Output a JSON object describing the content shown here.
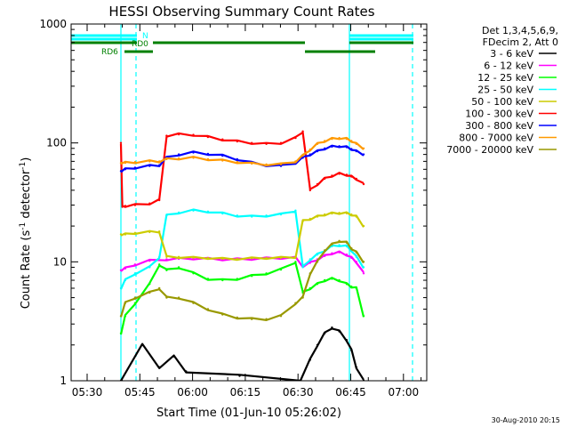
{
  "chart_data": {
    "type": "line",
    "title": "HESSI Observing Summary Count Rates",
    "xlabel": "Start Time (01-Jun-10 05:26:02)",
    "ylabel": "Count Rate (s",
    "ylabel_sup1": "-1",
    "ylabel_mid": " detector",
    "ylabel_sup2": "-1",
    "ylabel_end": ")",
    "yscale": "log",
    "ylim": [
      1,
      1000
    ],
    "xlim_minutes": [
      5.5,
      103.5
    ],
    "x_ticks": [
      "05:30",
      "05:45",
      "06:00",
      "06:15",
      "06:30",
      "06:45",
      "07:00"
    ],
    "x_tick_minutes": [
      30,
      45,
      60,
      75,
      90,
      105,
      120
    ],
    "y_ticks": [
      "1",
      "10",
      "100",
      "1000"
    ],
    "y_tick_values": [
      1,
      10,
      100,
      1000
    ],
    "legend_header": [
      "Det 1,3,4,5,6,9,",
      "FDecim 2, Att 0"
    ],
    "legend_position": "right",
    "footer_date": "30-Aug-2010 20:15",
    "flags": [
      {
        "label": "N",
        "color": "#00ffff",
        "segments": [
          [
            0,
            18.5
          ],
          [
            97,
            116
          ]
        ],
        "level": 840
      },
      {
        "label": "RD0",
        "color": "#008000",
        "segments": [
          [
            0,
            18.5
          ],
          [
            23,
            94
          ],
          [
            97,
            116
          ]
        ],
        "level": 680
      },
      {
        "label": "RD6",
        "color": "#008000",
        "segments": [
          [
            36,
            45
          ],
          [
            95,
            104
          ]
        ],
        "level": 560
      }
    ],
    "vertical_lines": [
      {
        "minute": 36.2,
        "color": "#00ffff",
        "style": "solid"
      },
      {
        "minute": 41.5,
        "color": "#00ffff",
        "style": "dashed"
      },
      {
        "minute": 128.8,
        "color": "#00ffff",
        "style": "solid"
      },
      {
        "minute": 137.7,
        "color": "#00ffff",
        "style": "dashed"
      }
    ],
    "series": [
      {
        "name": "3 - 6 keV",
        "color": "#000000",
        "x": [
          36.2,
          45,
          52,
          58,
          63,
          85,
          110,
          114,
          117,
          120,
          123,
          126,
          129,
          131,
          133,
          136
        ],
        "values": [
          1,
          2,
          1.3,
          1.6,
          1.2,
          1.1,
          1.0,
          1.5,
          2.0,
          2.5,
          2.8,
          2.6,
          2.2,
          1.8,
          1.3,
          1.0
        ]
      },
      {
        "name": "6 - 12 keV",
        "color": "#ff00ff",
        "x": [
          36.2,
          38,
          42,
          48,
          55,
          60,
          66,
          72,
          78,
          84,
          90,
          96,
          102,
          108,
          111,
          114,
          117,
          120,
          123,
          126,
          129,
          131,
          133,
          136
        ],
        "values": [
          8.5,
          8.8,
          9.5,
          10.2,
          10.5,
          10.6,
          10.7,
          10.6,
          10.5,
          10.5,
          10.6,
          10.7,
          10.8,
          10.8,
          9.2,
          9.8,
          10.5,
          11.2,
          11.8,
          12.0,
          11.5,
          10.8,
          10.0,
          8.0
        ]
      },
      {
        "name": "12 - 25 keV",
        "color": "#00ff00",
        "x": [
          36.2,
          38,
          42,
          48,
          52,
          55,
          60,
          66,
          72,
          78,
          84,
          90,
          96,
          102,
          108,
          111,
          114,
          117,
          120,
          123,
          126,
          129,
          131,
          133,
          136
        ],
        "values": [
          2.5,
          3.5,
          4.5,
          6.5,
          9.5,
          8.5,
          9.0,
          8.0,
          7.2,
          7.0,
          7.2,
          7.6,
          8.0,
          8.6,
          10.0,
          5.5,
          6.0,
          6.5,
          7.0,
          7.2,
          7.0,
          6.5,
          6.2,
          6.0,
          3.5
        ]
      },
      {
        "name": "25 - 50 keV",
        "color": "#00ffff",
        "x": [
          36.2,
          38,
          42,
          48,
          52,
          55,
          60,
          66,
          72,
          78,
          84,
          90,
          96,
          102,
          108,
          111,
          114,
          117,
          120,
          123,
          126,
          129,
          131,
          133,
          136
        ],
        "values": [
          6.0,
          7.0,
          8.0,
          9.0,
          11.0,
          24.5,
          26.0,
          27.0,
          26.5,
          25.5,
          24.5,
          24.0,
          24.5,
          25.0,
          27.0,
          9.0,
          10.5,
          11.5,
          12.5,
          13.5,
          13.8,
          13.5,
          12.5,
          11.0,
          9.0
        ]
      },
      {
        "name": "50 - 100 keV",
        "color": "#cccc00",
        "x": [
          36.2,
          38,
          42,
          48,
          52,
          55,
          60,
          66,
          72,
          78,
          84,
          90,
          96,
          102,
          108,
          111,
          114,
          117,
          120,
          123,
          126,
          129,
          131,
          133,
          136
        ],
        "values": [
          17.0,
          17.0,
          17.5,
          17.8,
          18.0,
          11.0,
          11.0,
          10.8,
          10.8,
          10.6,
          10.6,
          10.7,
          10.8,
          10.8,
          11.0,
          22.0,
          23.0,
          24.0,
          25.0,
          25.5,
          25.8,
          25.6,
          25.0,
          24.0,
          20.0
        ]
      },
      {
        "name": "100 - 300 keV",
        "color": "#ff0000",
        "x": [
          36.2,
          36.8,
          38,
          42,
          48,
          52,
          55,
          60,
          66,
          72,
          78,
          84,
          90,
          96,
          102,
          108,
          111,
          114,
          117,
          120,
          123,
          126,
          129,
          131,
          133,
          136
        ],
        "values": [
          100,
          29,
          29.5,
          30,
          31,
          33,
          115,
          118,
          117,
          112,
          107,
          103,
          100,
          98,
          100,
          110,
          125,
          40,
          45,
          50,
          53,
          55,
          54,
          52,
          50,
          45
        ]
      },
      {
        "name": "300 - 800 keV",
        "color": "#0000ff",
        "x": [
          36.2,
          38,
          42,
          48,
          52,
          55,
          60,
          66,
          72,
          78,
          84,
          90,
          96,
          102,
          108,
          111,
          114,
          117,
          120,
          123,
          126,
          129,
          131,
          133,
          136
        ],
        "values": [
          58,
          60,
          62,
          64,
          65,
          75,
          80,
          83,
          81,
          78,
          73,
          68,
          65,
          64,
          68,
          75,
          80,
          85,
          90,
          93,
          94,
          92,
          89,
          85,
          80
        ]
      },
      {
        "name": "800 - 7000 keV",
        "color": "#ff9900",
        "x": [
          36.2,
          38,
          42,
          48,
          52,
          55,
          60,
          66,
          72,
          78,
          84,
          90,
          96,
          102,
          108,
          111,
          114,
          117,
          120,
          123,
          126,
          129,
          131,
          133,
          136
        ],
        "values": [
          68,
          68,
          69,
          70,
          70,
          73,
          74,
          75,
          73,
          71,
          69,
          67,
          66,
          66,
          70,
          78,
          88,
          98,
          104,
          108,
          110,
          108,
          104,
          98,
          90
        ]
      },
      {
        "name": "7000 - 20000 keV",
        "color": "#999900",
        "x": [
          36.2,
          38,
          42,
          48,
          52,
          55,
          60,
          66,
          72,
          78,
          84,
          90,
          96,
          102,
          108,
          111,
          114,
          117,
          120,
          123,
          126,
          129,
          131,
          133,
          136
        ],
        "values": [
          3.5,
          4.5,
          5.0,
          5.5,
          6.0,
          5.0,
          5.0,
          4.5,
          4.0,
          3.6,
          3.4,
          3.3,
          3.3,
          3.5,
          4.5,
          5.0,
          8.0,
          10.0,
          12.5,
          14.0,
          15.0,
          14.5,
          13.0,
          12.0,
          10.0
        ]
      }
    ]
  }
}
